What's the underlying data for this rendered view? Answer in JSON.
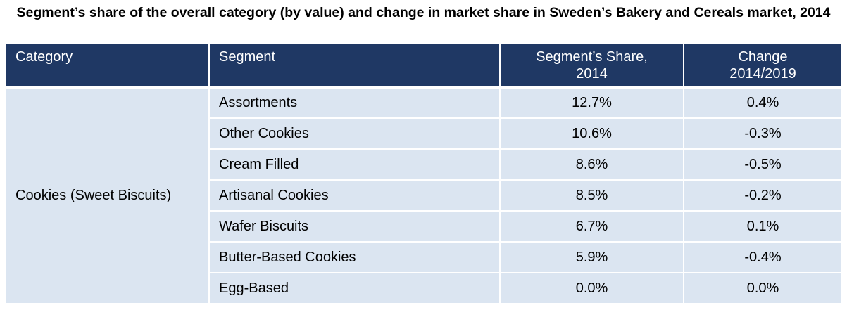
{
  "title": "Segment’s share of the overall category (by value) and change in market share in Sweden’s Bakery and Cereals market, 2014",
  "chart_data": {
    "type": "table",
    "title": "Segment’s share of the overall category (by value) and change in market share in Sweden’s Bakery and Cereals market, 2014",
    "columns": [
      "Category",
      "Segment",
      "Segment’s Share, 2014",
      "Change 2014/2019"
    ],
    "category": "Cookies (Sweet Biscuits)",
    "rows": [
      {
        "segment": "Assortments",
        "share": "12.7%",
        "change": "0.4%"
      },
      {
        "segment": "Other Cookies",
        "share": "10.6%",
        "change": "-0.3%"
      },
      {
        "segment": "Cream Filled",
        "share": "8.6%",
        "change": "-0.5%"
      },
      {
        "segment": "Artisanal Cookies",
        "share": "8.5%",
        "change": "-0.2%"
      },
      {
        "segment": "Wafer Biscuits",
        "share": "6.7%",
        "change": "0.1%"
      },
      {
        "segment": "Butter-Based Cookies",
        "share": "5.9%",
        "change": "-0.4%"
      },
      {
        "segment": "Egg-Based",
        "share": "0.0%",
        "change": "0.0%"
      }
    ]
  }
}
